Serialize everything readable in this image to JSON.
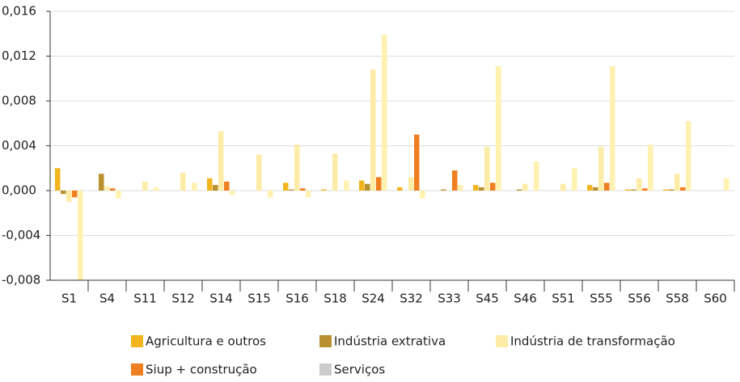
{
  "chart_data": {
    "type": "bar",
    "categories": [
      "S1",
      "S4",
      "S11",
      "S12",
      "S14",
      "S15",
      "S16",
      "S18",
      "S24",
      "S32",
      "S33",
      "S45",
      "S46",
      "S51",
      "S55",
      "S56",
      "S58",
      "S60"
    ],
    "series": [
      {
        "name": "Agricultura e outros",
        "color": "#f2b51f",
        "values": [
          0.002,
          0,
          0,
          0,
          0.0011,
          0,
          0.0007,
          0.0001,
          0.0009,
          0.0003,
          0,
          0.0005,
          0,
          0,
          0.0005,
          0.0001,
          0.0001,
          0
        ]
      },
      {
        "name": "Indústria extrativa",
        "color": "#b8902e",
        "values": [
          -0.0003,
          0.0015,
          0,
          0,
          0.0005,
          0,
          0.0001,
          0,
          0.0006,
          0,
          0.0001,
          0.0003,
          0.0001,
          0,
          0.0003,
          0.0001,
          0.0001,
          0
        ]
      },
      {
        "name": "Indústria de transformação",
        "color": "#fdeca6",
        "values": [
          -0.001,
          0.0004,
          0.0008,
          0.0016,
          0.0053,
          0.0032,
          0.0041,
          0.0033,
          0.0108,
          0.0012,
          0,
          0.0039,
          0.0006,
          0.0006,
          0.0039,
          0.0011,
          0.0015,
          0
        ]
      },
      {
        "name": "Siup + construção",
        "color": "#f07f22",
        "values": [
          -0.0006,
          0.0002,
          0,
          0,
          0.0008,
          0,
          0.0002,
          0,
          0.0012,
          0.005,
          0.0018,
          0.0007,
          0,
          0,
          0.0007,
          0.0002,
          0.0003,
          0
        ]
      },
      {
        "name": "Serviços",
        "color": "#fff1b0",
        "legend_color": "#cccccc",
        "values": [
          -0.008,
          -0.0007,
          0.0003,
          0.0007,
          -0.0004,
          -0.0006,
          -0.0006,
          0.0009,
          0.0139,
          -0.0007,
          0.0005,
          0.0111,
          0.0026,
          0.002,
          0.0111,
          0.0041,
          0.0062,
          0.0011
        ]
      }
    ],
    "ylim": [
      -0.008,
      0.016
    ],
    "yticks": [
      {
        "value": -0.008,
        "label": "-0,008"
      },
      {
        "value": -0.004,
        "label": "-0,004"
      },
      {
        "value": 0,
        "label": "0,000"
      },
      {
        "value": 0.004,
        "label": "0,004"
      },
      {
        "value": 0.008,
        "label": "0,008"
      },
      {
        "value": 0.012,
        "label": "0,012"
      },
      {
        "value": 0.016,
        "label": "0,016"
      }
    ],
    "grid": true
  }
}
